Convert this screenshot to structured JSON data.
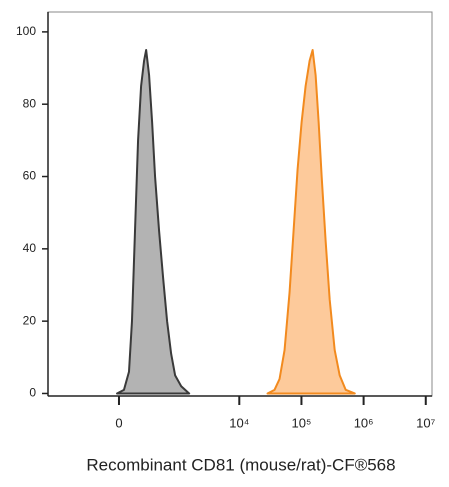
{
  "chart_data": {
    "type": "area",
    "x_label": "Recombinant CD81 (mouse/rat)-CF®568",
    "xscale": "biexponential",
    "xlim": [
      -1600,
      12600000
    ],
    "xticks": [
      0,
      {
        "value": 10000,
        "label": "10⁴"
      },
      {
        "value": 100000,
        "label": "10⁵"
      },
      {
        "value": 1000000,
        "label": "10⁶"
      },
      {
        "value": 10000000,
        "label": "10⁷"
      }
    ],
    "ylim": [
      -0.7,
      105.5
    ],
    "yticks": [
      0,
      20,
      40,
      60,
      80,
      100
    ],
    "series": [
      {
        "color": "#b3b3b3",
        "line_color": "#3a3a3a",
        "x": [
          -17,
          43,
          88,
          116,
          146,
          178,
          212,
          248,
          275,
          316,
          362,
          411,
          486,
          572,
          670,
          784,
          914,
          1151,
          1552
        ],
        "values": [
          0,
          1,
          6,
          20,
          45,
          70,
          85,
          92,
          95,
          88,
          75,
          60,
          45,
          32,
          20,
          11,
          5,
          2,
          0
        ]
      },
      {
        "color": "#fdca9b",
        "line_color": "#f28a1e",
        "x": [
          28440,
          36890,
          44420,
          53490,
          64410,
          74720,
          86680,
          100560,
          116650,
          135330,
          151300,
          169150,
          189110,
          211430,
          245270,
          284530,
          342600,
          412500,
          515600,
          720300
        ],
        "values": [
          0,
          1,
          4,
          12,
          28,
          45,
          62,
          75,
          85,
          92,
          95,
          88,
          75,
          60,
          42,
          26,
          12,
          5,
          1,
          0
        ]
      }
    ]
  }
}
